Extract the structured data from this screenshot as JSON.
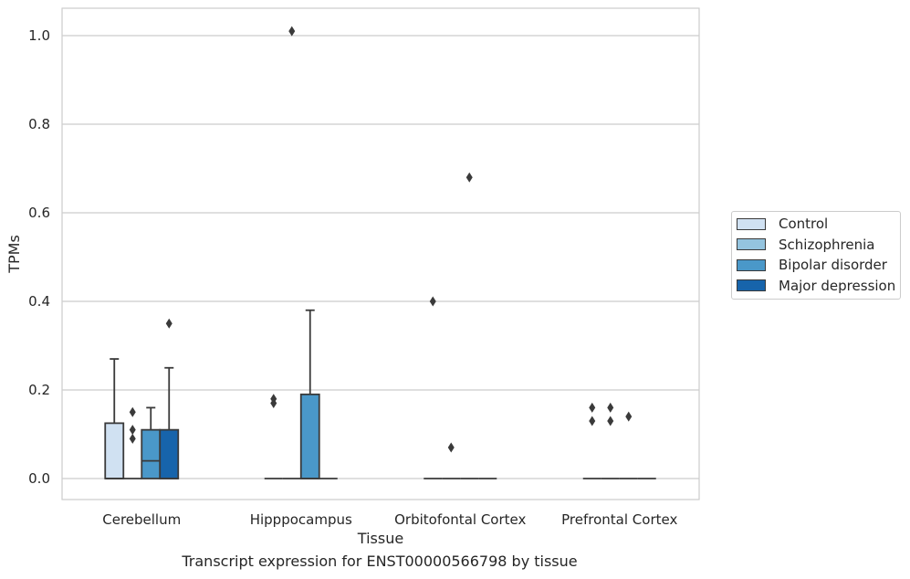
{
  "chart_data": {
    "type": "boxplot",
    "title": "Transcript expression for ENST00000566798 by tissue",
    "xlabel": "Tissue",
    "ylabel": "TPMs",
    "ylim": [
      -0.05,
      1.06
    ],
    "yticks": [
      0.0,
      0.2,
      0.4,
      0.6,
      0.8,
      1.0
    ],
    "ytick_labels": [
      "0.0",
      "0.2",
      "0.4",
      "0.6",
      "0.8",
      "1.0"
    ],
    "categories": [
      "Cerebellum",
      "Hipppocampus",
      "Orbitofontal Cortex",
      "Prefrontal Cortex"
    ],
    "grid": "horizontal",
    "legend_position": "right",
    "series": [
      {
        "name": "Control",
        "color": "#d0e1f2",
        "boxes": [
          {
            "q1": 0.0,
            "median": 0.0,
            "q3": 0.125,
            "whisker_low": 0.0,
            "whisker_high": 0.27,
            "outliers": []
          },
          {
            "q1": 0.0,
            "median": 0.0,
            "q3": 0.0,
            "whisker_low": 0.0,
            "whisker_high": 0.0,
            "outliers": [
              0.17,
              0.18
            ]
          },
          {
            "q1": 0.0,
            "median": 0.0,
            "q3": 0.0,
            "whisker_low": 0.0,
            "whisker_high": 0.0,
            "outliers": [
              0.4
            ]
          },
          {
            "q1": 0.0,
            "median": 0.0,
            "q3": 0.0,
            "whisker_low": 0.0,
            "whisker_high": 0.0,
            "outliers": [
              0.13,
              0.16
            ]
          }
        ]
      },
      {
        "name": "Schizophrenia",
        "color": "#94c4df",
        "boxes": [
          {
            "q1": 0.0,
            "median": 0.0,
            "q3": 0.0,
            "whisker_low": 0.0,
            "whisker_high": 0.0,
            "outliers": [
              0.09,
              0.11,
              0.15
            ]
          },
          {
            "q1": 0.0,
            "median": 0.0,
            "q3": 0.0,
            "whisker_low": 0.0,
            "whisker_high": 0.0,
            "outliers": [
              1.01
            ]
          },
          {
            "q1": 0.0,
            "median": 0.0,
            "q3": 0.0,
            "whisker_low": 0.0,
            "whisker_high": 0.0,
            "outliers": [
              0.07
            ]
          },
          {
            "q1": 0.0,
            "median": 0.0,
            "q3": 0.0,
            "whisker_low": 0.0,
            "whisker_high": 0.0,
            "outliers": [
              0.13,
              0.16
            ]
          }
        ]
      },
      {
        "name": "Bipolar disorder",
        "color": "#4a98c9",
        "boxes": [
          {
            "q1": 0.0,
            "median": 0.04,
            "q3": 0.11,
            "whisker_low": 0.0,
            "whisker_high": 0.16,
            "outliers": []
          },
          {
            "q1": 0.0,
            "median": 0.0,
            "q3": 0.19,
            "whisker_low": 0.0,
            "whisker_high": 0.38,
            "outliers": []
          },
          {
            "q1": 0.0,
            "median": 0.0,
            "q3": 0.0,
            "whisker_low": 0.0,
            "whisker_high": 0.0,
            "outliers": [
              0.68
            ]
          },
          {
            "q1": 0.0,
            "median": 0.0,
            "q3": 0.0,
            "whisker_low": 0.0,
            "whisker_high": 0.0,
            "outliers": [
              0.14
            ]
          }
        ]
      },
      {
        "name": "Major depression",
        "color": "#1764ab",
        "boxes": [
          {
            "q1": 0.0,
            "median": 0.0,
            "q3": 0.11,
            "whisker_low": 0.0,
            "whisker_high": 0.25,
            "outliers": [
              0.35
            ]
          },
          {
            "q1": 0.0,
            "median": 0.0,
            "q3": 0.0,
            "whisker_low": 0.0,
            "whisker_high": 0.0,
            "outliers": []
          },
          {
            "q1": 0.0,
            "median": 0.0,
            "q3": 0.0,
            "whisker_low": 0.0,
            "whisker_high": 0.0,
            "outliers": []
          },
          {
            "q1": 0.0,
            "median": 0.0,
            "q3": 0.0,
            "whisker_low": 0.0,
            "whisker_high": 0.0,
            "outliers": []
          }
        ]
      }
    ]
  }
}
